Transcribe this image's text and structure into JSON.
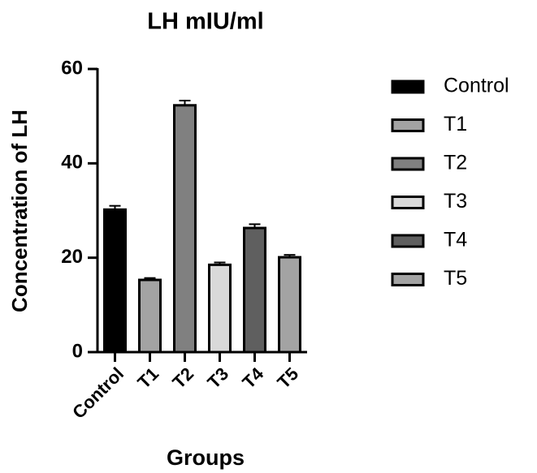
{
  "chart_data": {
    "type": "bar",
    "title": "LH mIU/ml",
    "x_label": "Groups",
    "y_label": "Concentration of LH",
    "categories": [
      "Control",
      "T1",
      "T2",
      "T3",
      "T4",
      "T5"
    ],
    "values": [
      30.2,
      15.3,
      52.3,
      18.5,
      26.3,
      20.1
    ],
    "errors": [
      0.8,
      0.4,
      1.0,
      0.5,
      0.8,
      0.5
    ],
    "colors": [
      "#000000",
      "#a3a3a3",
      "#808080",
      "#d9d9d9",
      "#5f5f5f",
      "#a3a3a3"
    ],
    "ylim": [
      0,
      60
    ],
    "yticks": [
      0,
      20,
      40,
      60
    ],
    "grid": false
  }
}
